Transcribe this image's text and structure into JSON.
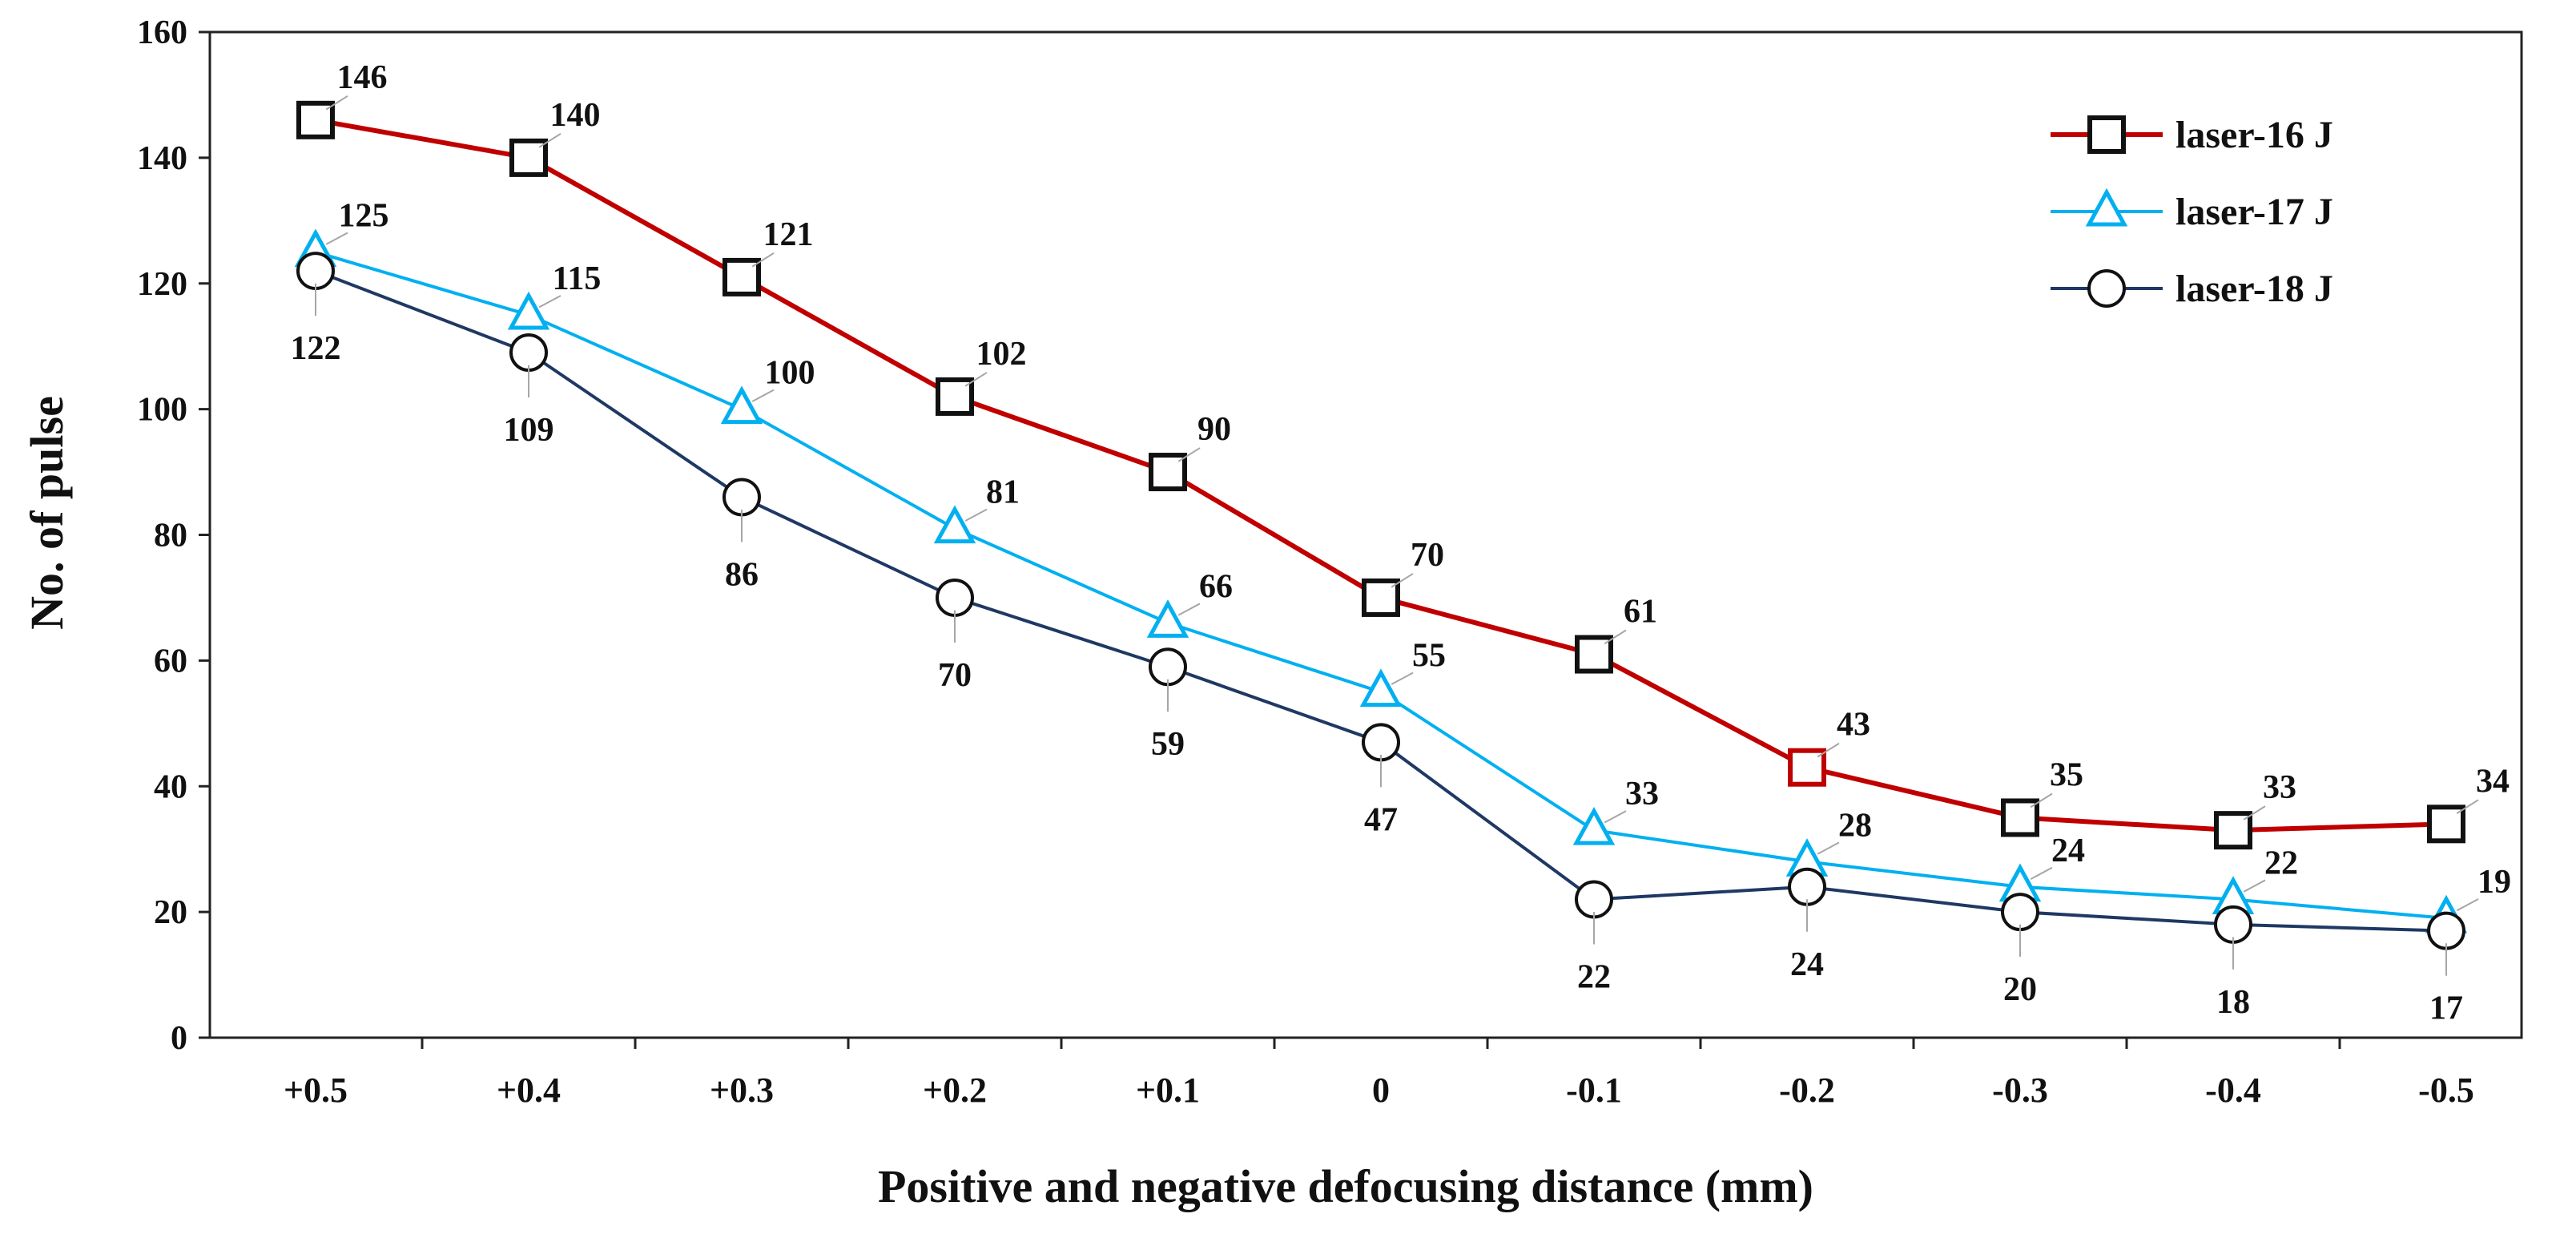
{
  "chart_data": {
    "type": "line",
    "title": "",
    "xlabel": "Positive and negative defocusing distance (mm)",
    "ylabel": "No. of  pulse",
    "categories": [
      "+0.5",
      "+0.4",
      "+0.3",
      "+0.2",
      "+0.1",
      "0",
      "-0.1",
      "-0.2",
      "-0.3",
      "-0.4",
      "-0.5"
    ],
    "ylim": [
      0,
      160
    ],
    "yticks": [
      "0",
      "20",
      "40",
      "60",
      "80",
      "100",
      "120",
      "140",
      "160"
    ],
    "grid": false,
    "legend_position": "top-right",
    "series": [
      {
        "name": "laser-16 J",
        "marker": "square",
        "color": "#c00000",
        "values": [
          146,
          140,
          121,
          102,
          90,
          70,
          61,
          43,
          35,
          33,
          34
        ]
      },
      {
        "name": "laser-17 J",
        "marker": "triangle",
        "color": "#00b0f0",
        "values": [
          125,
          115,
          100,
          81,
          66,
          55,
          33,
          28,
          24,
          22,
          19
        ]
      },
      {
        "name": "laser-18 J",
        "marker": "circle",
        "color": "#1f3864",
        "values": [
          122,
          109,
          86,
          70,
          59,
          47,
          22,
          24,
          20,
          18,
          17
        ]
      }
    ]
  }
}
